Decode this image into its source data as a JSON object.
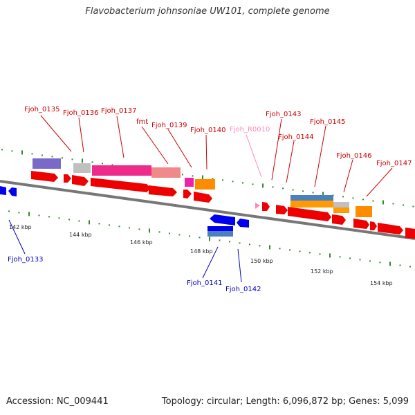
{
  "title": "Flavobacterium johnsoniae UW101, complete genome",
  "footer": {
    "accession": "Accession: NC_009441",
    "summary": "Topology: circular; Length: 6,096,872 bp; Genes: 5,099"
  },
  "colors": {
    "backbone": "#777777",
    "tick": "#2e8b2e",
    "forward_label": "#cc0000",
    "reverse_label": "#0000bb",
    "rna_label": "#ff88bb"
  },
  "scale_labels": [
    "142 kbp",
    "144 kbp",
    "146 kbp",
    "148 kbp",
    "150 kbp",
    "152 kbp",
    "154 kbp"
  ],
  "gene_labels": [
    {
      "text": "Fjoh_0135",
      "strand": "forward"
    },
    {
      "text": "Fjoh_0136",
      "strand": "forward"
    },
    {
      "text": "Fjoh_0137",
      "strand": "forward"
    },
    {
      "text": "fmt",
      "strand": "forward"
    },
    {
      "text": "Fjoh_0139",
      "strand": "forward"
    },
    {
      "text": "Fjoh_0140",
      "strand": "forward"
    },
    {
      "text": "Fjoh_R0010",
      "strand": "rna"
    },
    {
      "text": "Fjoh_0143",
      "strand": "forward"
    },
    {
      "text": "Fjoh_0144",
      "strand": "forward"
    },
    {
      "text": "Fjoh_0145",
      "strand": "forward"
    },
    {
      "text": "Fjoh_0146",
      "strand": "forward"
    },
    {
      "text": "Fjoh_0147",
      "strand": "forward"
    },
    {
      "text": "Fjoh_0133",
      "strand": "reverse"
    },
    {
      "text": "Fjoh_0141",
      "strand": "reverse"
    },
    {
      "text": "Fjoh_0142",
      "strand": "reverse"
    }
  ]
}
